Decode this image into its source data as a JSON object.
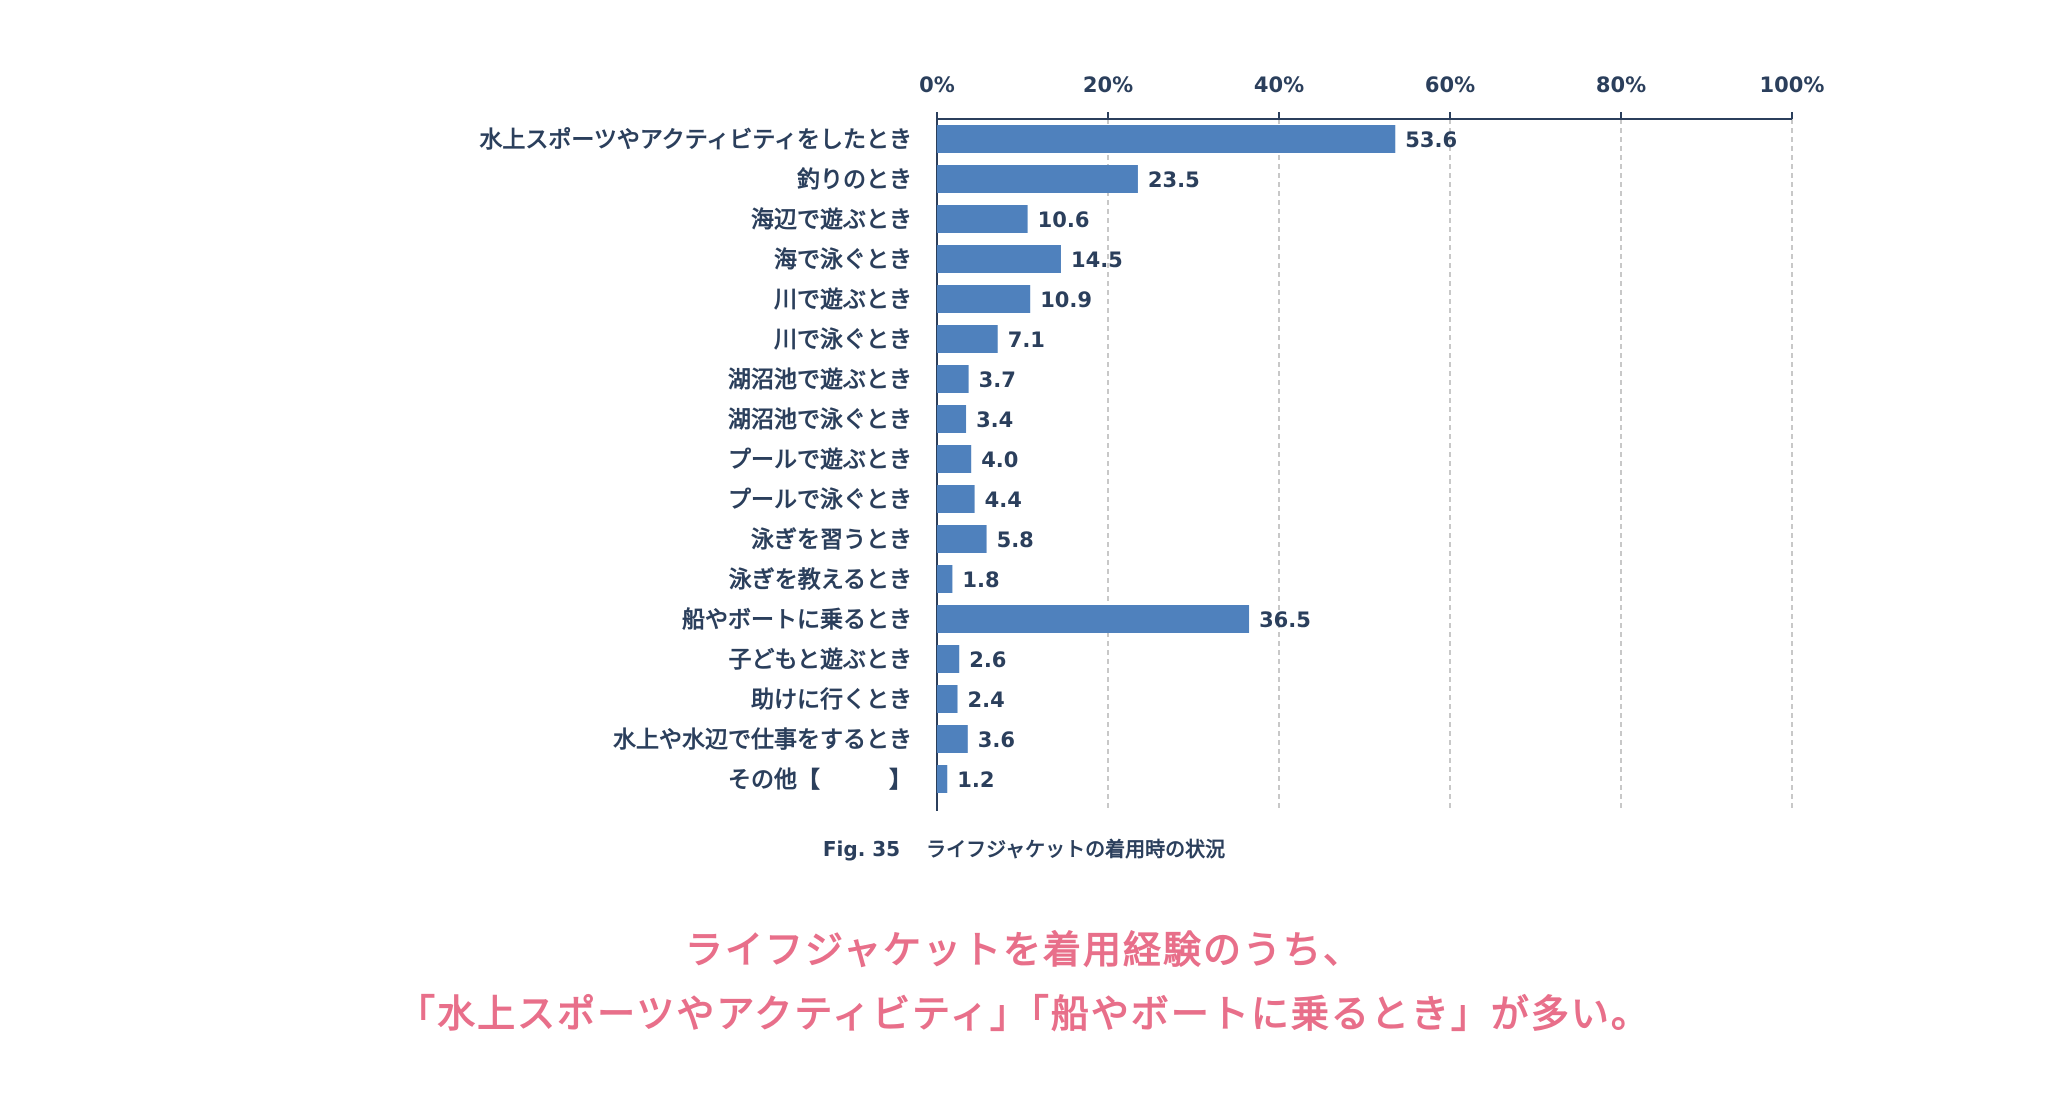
{
  "chart_data": {
    "type": "bar",
    "orientation": "horizontal",
    "categories": [
      "水上スポーツやアクティビティをしたとき",
      "釣りのとき",
      "海辺で遊ぶとき",
      "海で泳ぐとき",
      "川で遊ぶとき",
      "川で泳ぐとき",
      "湖沼池で遊ぶとき",
      "湖沼池で泳ぐとき",
      "プールで遊ぶとき",
      "プールで泳ぐとき",
      "泳ぎを習うとき",
      "泳ぎを教えるとき",
      "船やボートに乗るとき",
      "子どもと遊ぶとき",
      "助けに行くとき",
      "水上や水辺で仕事をするとき",
      "その他【　　　】"
    ],
    "values": [
      53.6,
      23.5,
      10.6,
      14.5,
      10.9,
      7.1,
      3.7,
      3.4,
      4.0,
      4.4,
      5.8,
      1.8,
      36.5,
      2.6,
      2.4,
      3.6,
      1.2
    ],
    "value_labels": [
      "53.6",
      "23.5",
      "10.6",
      "14.5",
      "10.9",
      "7.1",
      "3.7",
      "3.4",
      "4.0",
      "4.4",
      "5.8",
      "1.8",
      "36.5",
      "2.6",
      "2.4",
      "3.6",
      "1.2"
    ],
    "x_ticks": [
      "0%",
      "20%",
      "40%",
      "60%",
      "80%",
      "100%"
    ],
    "xlim": [
      0,
      100
    ],
    "tick_step": 20,
    "x_axis_position": "top",
    "grid": true,
    "legend": "none",
    "bar_color": "#4f81bd"
  },
  "caption": {
    "fig": "Fig. 35",
    "title": "ライフジャケットの着用時の状況"
  },
  "headline": {
    "line1": "ライフジャケットを着用経験のうち、",
    "line2": "「水上スポーツやアクティビティ」「船やボートに乗るとき」が多い。"
  },
  "colors": {
    "text": "#2b3f5c",
    "bar": "#4f81bd",
    "grid": "#b5b5b5",
    "headline": "#e86f8a"
  }
}
